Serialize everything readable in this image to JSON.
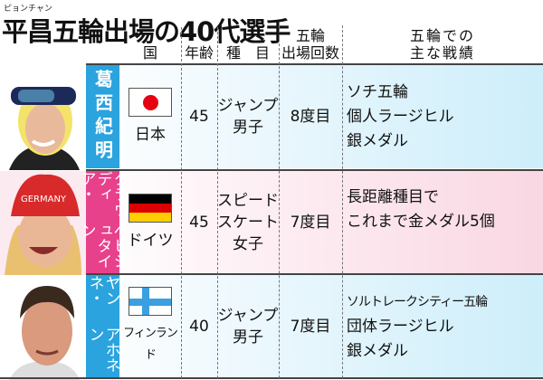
{
  "title_ruby": "ピョンチャン",
  "title": "平昌五輪出場の40代選手",
  "headers": {
    "country": "国",
    "age": "年齢",
    "event": "種　目",
    "count_l1": "五輪",
    "count_l2": "出場回数",
    "results_l1": "五輪での",
    "results_l2": "主な戦績"
  },
  "colors": {
    "blue_band": "#2aa3de",
    "pink_band": "#e8418c",
    "japan_red": "#e60012",
    "germany": [
      "#000000",
      "#dd0000",
      "#ffce00"
    ],
    "finland_blue": "#3aa0e0"
  },
  "athletes": [
    {
      "name_lines": [
        "葛西紀明"
      ],
      "country": "日本",
      "flag": "japan",
      "age": "45",
      "event_lines": [
        "ジャンプ",
        "男子"
      ],
      "count": "8度目",
      "result_lines": [
        "ソチ五輪",
        "個人ラージヒル",
        "銀メダル"
      ]
    },
    {
      "name_lines": [
        "クラウディア・",
        "ペヒシュタイン"
      ],
      "country": "ドイツ",
      "flag": "germany",
      "age": "45",
      "event_lines": [
        "スピード",
        "スケート",
        "女子"
      ],
      "count": "7度目",
      "result_lines": [
        "長距離種目で",
        "これまで金メダル5個"
      ]
    },
    {
      "name_lines": [
        "ヤンネ・",
        "アホネン"
      ],
      "country": "フィンランド",
      "flag": "finland",
      "age": "40",
      "event_lines": [
        "ジャンプ",
        "男子"
      ],
      "count": "7度目",
      "result_lines": [
        "ソルトレークシティー五輪",
        "団体ラージヒル",
        "銀メダル"
      ]
    }
  ]
}
